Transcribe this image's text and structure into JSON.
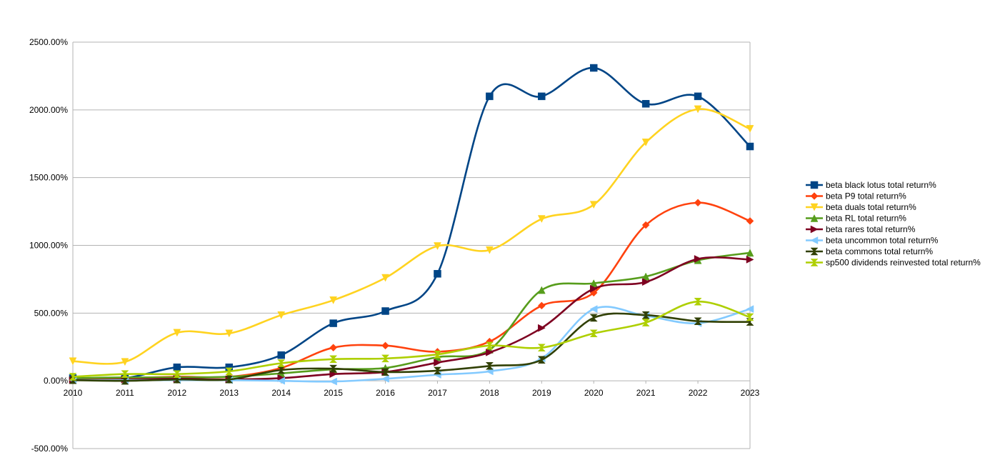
{
  "chart_data": {
    "type": "line",
    "title": "",
    "xlabel": "",
    "ylabel": "",
    "smooth": true,
    "grid": {
      "horizontal": true,
      "vertical": false
    },
    "legend_position": "right",
    "x": [
      2010,
      2011,
      2012,
      2013,
      2014,
      2015,
      2016,
      2017,
      2018,
      2019,
      2020,
      2021,
      2022,
      2023
    ],
    "x_tick_labels": [
      "2010",
      "2011",
      "2012",
      "2013",
      "2014",
      "2015",
      "2016",
      "2017",
      "2018",
      "2019",
      "2020",
      "2021",
      "2022",
      "2023"
    ],
    "ylim": [
      -500,
      2500
    ],
    "y_ticks": [
      -500,
      0,
      500,
      1000,
      1500,
      2000,
      2500
    ],
    "y_tick_labels": [
      "-500.00%",
      "0.00%",
      "500.00%",
      "1000.00%",
      "1500.00%",
      "2000.00%",
      "2500.00%"
    ],
    "series": [
      {
        "name": "beta black lotus total return%",
        "color": "#004586",
        "marker": "square",
        "values": [
          20,
          20,
          100,
          100,
          190,
          425,
          515,
          790,
          2100,
          2100,
          2310,
          2045,
          2100,
          1730
        ]
      },
      {
        "name": "beta P9 total return%",
        "color": "#ff420e",
        "marker": "diamond",
        "values": [
          20,
          20,
          30,
          30,
          95,
          245,
          260,
          215,
          290,
          555,
          650,
          1150,
          1315,
          1180
        ]
      },
      {
        "name": "beta duals total return%",
        "color": "#ffd320",
        "marker": "triangle-down",
        "values": [
          145,
          140,
          355,
          350,
          485,
          595,
          760,
          995,
          965,
          1195,
          1300,
          1760,
          2005,
          1860
        ]
      },
      {
        "name": "beta RL total return%",
        "color": "#579d1c",
        "marker": "triangle-up",
        "values": [
          20,
          25,
          25,
          30,
          55,
          85,
          95,
          175,
          230,
          670,
          720,
          770,
          890,
          945
        ]
      },
      {
        "name": "beta rares  total return%",
        "color": "#7e0021",
        "marker": "triangle-right",
        "values": [
          5,
          10,
          15,
          10,
          20,
          50,
          65,
          135,
          210,
          390,
          680,
          730,
          900,
          895
        ]
      },
      {
        "name": "beta uncommon total return%",
        "color": "#83caff",
        "marker": "triangle-left",
        "values": [
          5,
          5,
          5,
          5,
          0,
          -5,
          15,
          45,
          70,
          165,
          530,
          480,
          425,
          530
        ]
      },
      {
        "name": "beta commons total return%",
        "color": "#314004",
        "marker": "bowtie",
        "values": [
          5,
          0,
          10,
          10,
          80,
          90,
          65,
          75,
          110,
          155,
          465,
          485,
          440,
          435
        ]
      },
      {
        "name": "sp500 dividends reinvested total return%",
        "color": "#aecf00",
        "marker": "hourglass",
        "values": [
          30,
          50,
          50,
          70,
          130,
          160,
          165,
          195,
          260,
          245,
          350,
          430,
          585,
          470
        ]
      }
    ]
  }
}
